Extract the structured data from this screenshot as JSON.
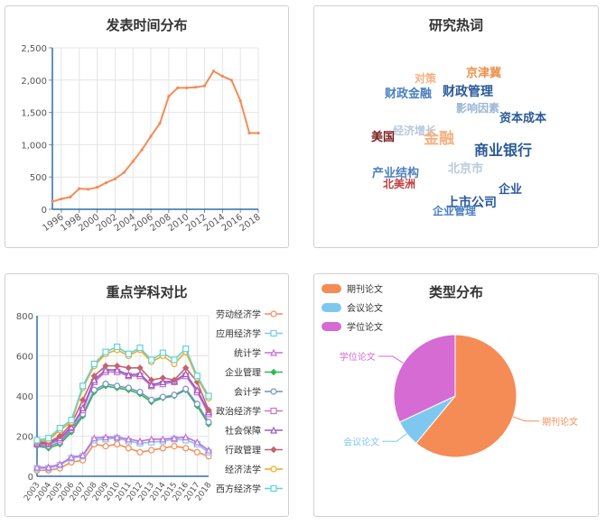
{
  "chart_data": [
    {
      "id": "pub_time",
      "type": "line",
      "title": "发表时间分布",
      "x": [
        1995,
        1996,
        1997,
        1998,
        1999,
        2000,
        2001,
        2002,
        2003,
        2004,
        2005,
        2006,
        2007,
        2008,
        2009,
        2010,
        2011,
        2012,
        2013,
        2014,
        2015,
        2016,
        2017,
        2018
      ],
      "x_ticks": [
        "1996",
        "1998",
        "2000",
        "2002",
        "2004",
        "2006",
        "2008",
        "2010",
        "2012",
        "2014",
        "2016",
        "2018"
      ],
      "values": [
        120,
        160,
        190,
        320,
        310,
        340,
        410,
        470,
        570,
        740,
        920,
        1130,
        1330,
        1750,
        1880,
        1880,
        1890,
        1910,
        2140,
        2060,
        2000,
        1680,
        1180,
        1180
      ],
      "ylim": [
        0,
        2500
      ],
      "y_ticks": [
        "0",
        "500",
        "1,000",
        "1,500",
        "2,000",
        "2,500"
      ],
      "color": "#f58c56",
      "grid": true
    },
    {
      "id": "keywords",
      "type": "wordcloud",
      "title": "研究热词",
      "words": [
        {
          "text": "对策",
          "color": "#f7b081",
          "size": 12
        },
        {
          "text": "京津冀",
          "color": "#f0914e",
          "size": 13
        },
        {
          "text": "财政金融",
          "color": "#4a7fc1",
          "size": 13
        },
        {
          "text": "财政管理",
          "color": "#2a5a9a",
          "size": 14
        },
        {
          "text": "影响因素",
          "color": "#9ab6d6",
          "size": 12
        },
        {
          "text": "资本成本",
          "color": "#2a5a9a",
          "size": 13
        },
        {
          "text": "经济增长",
          "color": "#b7c9de",
          "size": 12
        },
        {
          "text": "美国",
          "color": "#7a1e1e",
          "size": 13
        },
        {
          "text": "金融",
          "color": "#f7b081",
          "size": 17
        },
        {
          "text": "商业银行",
          "color": "#2a5a9a",
          "size": 16
        },
        {
          "text": "产业结构",
          "color": "#4a7fc1",
          "size": 13
        },
        {
          "text": "北京市",
          "color": "#b7c9de",
          "size": 13
        },
        {
          "text": "北美洲",
          "color": "#c04040",
          "size": 12
        },
        {
          "text": "企业",
          "color": "#2a5a9a",
          "size": 13
        },
        {
          "text": "上市公司",
          "color": "#2a5a9a",
          "size": 14
        },
        {
          "text": "企业管理",
          "color": "#4a7fc1",
          "size": 12
        }
      ]
    },
    {
      "id": "disciplines",
      "type": "line",
      "title": "重点学科对比",
      "x": [
        "2003",
        "2004",
        "2005",
        "2006",
        "2007",
        "2008",
        "2009",
        "2010",
        "2011",
        "2012",
        "2013",
        "2014",
        "2015",
        "2016",
        "2017",
        "2018"
      ],
      "ylim": [
        0,
        800
      ],
      "y_ticks": [
        "0",
        "200",
        "400",
        "600",
        "800"
      ],
      "grid": true,
      "series": [
        {
          "name": "劳动经济学",
          "color": "#f58c56",
          "marker": "circle",
          "values": [
            30,
            30,
            40,
            70,
            80,
            160,
            150,
            160,
            140,
            120,
            130,
            140,
            150,
            140,
            120,
            100
          ]
        },
        {
          "name": "应用经济学",
          "color": "#7ec8f0",
          "marker": "square",
          "values": [
            40,
            40,
            55,
            90,
            100,
            180,
            185,
            190,
            175,
            165,
            170,
            175,
            185,
            180,
            160,
            120
          ]
        },
        {
          "name": "统计学",
          "color": "#c76edb",
          "marker": "triangle",
          "values": [
            45,
            45,
            60,
            95,
            105,
            190,
            195,
            195,
            185,
            175,
            185,
            185,
            190,
            195,
            170,
            130
          ]
        },
        {
          "name": "企业管理",
          "color": "#2fb84a",
          "marker": "diamond",
          "values": [
            150,
            140,
            160,
            220,
            300,
            420,
            450,
            440,
            430,
            410,
            370,
            390,
            400,
            430,
            350,
            260
          ]
        },
        {
          "name": "会计学",
          "color": "#7392c9",
          "marker": "circle",
          "values": [
            155,
            150,
            170,
            230,
            310,
            430,
            460,
            450,
            440,
            420,
            380,
            395,
            405,
            435,
            360,
            270
          ]
        },
        {
          "name": "政治经济学",
          "color": "#d070c8",
          "marker": "square",
          "values": [
            160,
            160,
            180,
            240,
            330,
            470,
            520,
            520,
            500,
            500,
            450,
            460,
            470,
            500,
            420,
            310
          ]
        },
        {
          "name": "社会保障",
          "color": "#9a5ac8",
          "marker": "triangle",
          "values": [
            165,
            165,
            190,
            245,
            340,
            480,
            530,
            530,
            505,
            510,
            455,
            470,
            475,
            510,
            430,
            320
          ]
        },
        {
          "name": "行政管理",
          "color": "#c0646e",
          "marker": "diamond",
          "values": [
            170,
            170,
            200,
            260,
            380,
            500,
            550,
            550,
            540,
            540,
            480,
            490,
            480,
            540,
            470,
            330
          ]
        },
        {
          "name": "经济法学",
          "color": "#f5a623",
          "marker": "circle",
          "values": [
            175,
            180,
            230,
            270,
            440,
            550,
            610,
            630,
            600,
            630,
            570,
            600,
            560,
            620,
            490,
            390
          ]
        },
        {
          "name": "西方经济学",
          "color": "#5fd5d0",
          "marker": "square",
          "values": [
            180,
            190,
            240,
            280,
            450,
            560,
            620,
            645,
            610,
            640,
            580,
            615,
            580,
            635,
            500,
            400
          ]
        }
      ]
    },
    {
      "id": "type_dist",
      "type": "pie",
      "title": "类型分布",
      "slices": [
        {
          "name": "期刊论文",
          "value": 61,
          "color": "#f58c56"
        },
        {
          "name": "会议论文",
          "value": 7,
          "color": "#7ec8f0"
        },
        {
          "name": "学位论文",
          "value": 32,
          "color": "#d56bd3"
        }
      ],
      "legend": "top-left"
    }
  ]
}
